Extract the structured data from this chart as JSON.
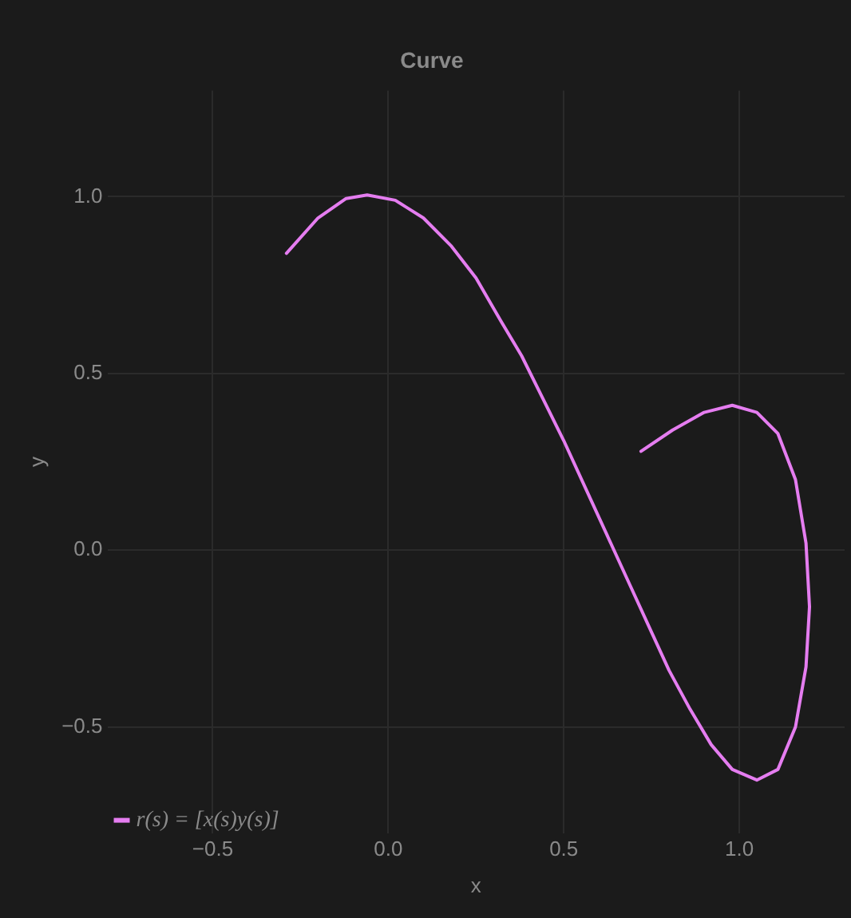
{
  "chart_data": {
    "type": "line",
    "title": "Curve",
    "xlabel": "x",
    "ylabel": "y",
    "xlim": [
      -0.8,
      1.3
    ],
    "ylim": [
      -0.8,
      1.3
    ],
    "xticks": [
      {
        "value": -0.5,
        "label": "−0.5"
      },
      {
        "value": 0,
        "label": "0.0"
      },
      0.5,
      {
        "value": 1,
        "label": "1.0"
      }
    ],
    "yticks": [
      {
        "value": -0.5,
        "label": "−0.5"
      },
      {
        "value": 0,
        "label": "0.0"
      },
      0.5,
      {
        "value": 1,
        "label": "1.0"
      }
    ],
    "grid": true,
    "legend": "bottom left",
    "marker": "none",
    "line_style": "solid",
    "series": [
      {
        "name": "r(s) = [x(s)y(s)]",
        "color": "#e57df0",
        "x": [
          -0.29,
          -0.2,
          -0.12,
          -0.06,
          0.02,
          0.1,
          0.18,
          0.25,
          0.32,
          0.38,
          0.44,
          0.5,
          0.56,
          0.62,
          0.68,
          0.74,
          0.8,
          0.86,
          0.92,
          0.98,
          1.05,
          1.11,
          1.16,
          1.19,
          1.2,
          1.19,
          1.16,
          1.11,
          1.05,
          0.98,
          0.9,
          0.81,
          0.72
        ],
        "values": [
          0.84,
          0.94,
          0.995,
          1.005,
          0.99,
          0.94,
          0.86,
          0.77,
          0.65,
          0.55,
          0.43,
          0.31,
          0.18,
          0.05,
          -0.08,
          -0.21,
          -0.34,
          -0.45,
          -0.55,
          -0.62,
          -0.65,
          -0.62,
          -0.5,
          -0.33,
          -0.16,
          0.02,
          0.2,
          0.33,
          0.39,
          0.41,
          0.39,
          0.34,
          0.28
        ]
      }
    ]
  }
}
